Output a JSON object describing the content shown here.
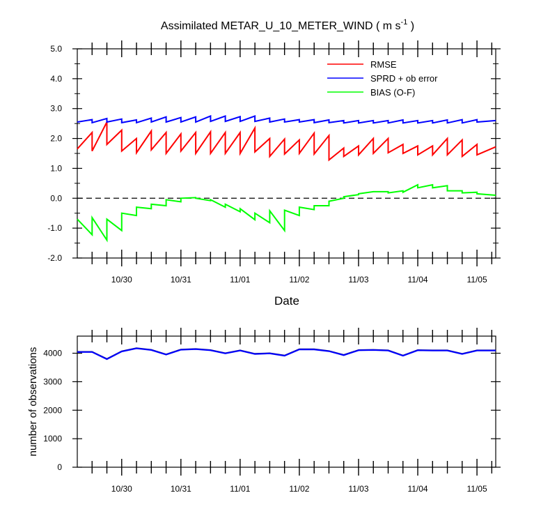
{
  "chart_data": [
    {
      "type": "line",
      "title": {
        "main": "Assimilated METAR_U_10_METER_WIND ( m s",
        "superscript": "-1",
        "end": " )"
      },
      "xlabel": "Date",
      "ylabel": "",
      "xlim": [
        0,
        42.4
      ],
      "ylim": [
        -2.0,
        5.0
      ],
      "yticks": [
        "5.0",
        "4.0",
        "3.0",
        "2.0",
        "1.0",
        "0.0",
        "-1.0",
        "-2.0"
      ],
      "ytick_values": [
        5,
        4,
        3,
        2,
        1,
        0,
        -1,
        -2
      ],
      "xticks": [
        {
          "label": "10/30",
          "value": 4.5
        },
        {
          "label": "10/31",
          "value": 10.5
        },
        {
          "label": "11/01",
          "value": 16.5
        },
        {
          "label": "11/02",
          "value": 22.5
        },
        {
          "label": "11/03",
          "value": 28.5
        },
        {
          "label": "11/04",
          "value": 34.5
        },
        {
          "label": "11/05",
          "value": 40.5
        }
      ],
      "reference_line": {
        "y": 0.0,
        "style": "dashed"
      },
      "legend": {
        "placement": "top-right"
      },
      "series": [
        {
          "name": "RMSE",
          "color": "#ff0000",
          "x": [
            0,
            1.5,
            1.5,
            3.0,
            3.0,
            4.5,
            4.5,
            6.0,
            6.0,
            7.5,
            7.5,
            9.0,
            9.0,
            10.5,
            10.5,
            12.0,
            12.0,
            13.5,
            13.5,
            15.0,
            15.0,
            16.5,
            16.5,
            18.0,
            18.0,
            19.5,
            19.5,
            21.0,
            21.0,
            22.5,
            22.5,
            24.0,
            24.0,
            25.5,
            25.5,
            27.0,
            27.0,
            28.5,
            28.5,
            30.0,
            30.0,
            31.5,
            31.5,
            33.0,
            33.0,
            34.5,
            34.5,
            36.0,
            36.0,
            37.5,
            37.5,
            39.0,
            39.0,
            40.5,
            40.5,
            42.4
          ],
          "values": [
            1.65,
            2.2,
            1.58,
            2.55,
            1.8,
            2.28,
            1.58,
            2.0,
            1.52,
            2.25,
            1.62,
            2.2,
            1.5,
            2.15,
            1.58,
            2.2,
            1.5,
            2.22,
            1.5,
            2.2,
            1.5,
            2.2,
            1.5,
            2.35,
            1.55,
            2.0,
            1.4,
            1.98,
            1.48,
            1.95,
            1.5,
            2.18,
            1.48,
            2.1,
            1.28,
            1.68,
            1.4,
            1.75,
            1.45,
            2.0,
            1.5,
            2.0,
            1.52,
            1.8,
            1.5,
            1.75,
            1.45,
            1.75,
            1.45,
            2.0,
            1.45,
            1.95,
            1.4,
            1.8,
            1.45,
            1.72
          ]
        },
        {
          "name": "SPRD + ob error",
          "color": "#0000ff",
          "x": [
            0,
            1.5,
            1.5,
            3.0,
            3.0,
            4.5,
            4.5,
            6.0,
            6.0,
            7.5,
            7.5,
            9.0,
            9.0,
            10.5,
            10.5,
            12.0,
            12.0,
            13.5,
            13.5,
            15.0,
            15.0,
            16.5,
            16.5,
            18.0,
            18.0,
            19.5,
            19.5,
            21.0,
            21.0,
            22.5,
            22.5,
            24.0,
            24.0,
            25.5,
            25.5,
            27.0,
            27.0,
            28.5,
            28.5,
            30.0,
            30.0,
            31.5,
            31.5,
            33.0,
            33.0,
            34.5,
            34.5,
            36.0,
            36.0,
            37.5,
            37.5,
            39.0,
            39.0,
            40.5,
            40.5,
            42.4
          ],
          "values": [
            2.55,
            2.63,
            2.53,
            2.67,
            2.55,
            2.65,
            2.53,
            2.62,
            2.53,
            2.68,
            2.55,
            2.72,
            2.55,
            2.7,
            2.55,
            2.72,
            2.55,
            2.75,
            2.57,
            2.75,
            2.57,
            2.73,
            2.57,
            2.75,
            2.57,
            2.68,
            2.55,
            2.65,
            2.55,
            2.63,
            2.55,
            2.63,
            2.53,
            2.62,
            2.53,
            2.6,
            2.52,
            2.6,
            2.52,
            2.6,
            2.52,
            2.6,
            2.52,
            2.62,
            2.52,
            2.6,
            2.52,
            2.6,
            2.52,
            2.62,
            2.52,
            2.63,
            2.52,
            2.63,
            2.55,
            2.6
          ]
        },
        {
          "name": "BIAS (O-F)",
          "color": "#00ff00",
          "x": [
            0,
            1.5,
            1.5,
            3.0,
            3.0,
            4.5,
            4.5,
            6.0,
            6.0,
            7.5,
            7.5,
            9.0,
            9.0,
            10.5,
            10.5,
            12.0,
            12.0,
            13.5,
            13.5,
            15.0,
            15.0,
            16.5,
            16.5,
            18.0,
            18.0,
            19.5,
            19.5,
            21.0,
            21.0,
            22.5,
            22.5,
            24.0,
            24.0,
            25.5,
            25.5,
            27.0,
            27.0,
            28.5,
            28.5,
            30.0,
            30.0,
            31.5,
            31.5,
            33.0,
            33.0,
            34.5,
            34.5,
            36.0,
            36.0,
            37.5,
            37.5,
            39.0,
            39.0,
            40.5,
            40.5,
            42.4
          ],
          "values": [
            -0.7,
            -1.22,
            -0.65,
            -1.4,
            -0.7,
            -1.08,
            -0.5,
            -0.58,
            -0.3,
            -0.35,
            -0.2,
            -0.25,
            -0.05,
            -0.12,
            0.0,
            0.02,
            0.0,
            -0.08,
            -0.05,
            -0.3,
            -0.2,
            -0.45,
            -0.35,
            -0.72,
            -0.5,
            -0.82,
            -0.42,
            -1.08,
            -0.4,
            -0.58,
            -0.3,
            -0.38,
            -0.25,
            -0.25,
            -0.1,
            0.0,
            0.05,
            0.12,
            0.15,
            0.22,
            0.22,
            0.22,
            0.18,
            0.25,
            0.2,
            0.45,
            0.35,
            0.45,
            0.35,
            0.42,
            0.25,
            0.25,
            0.18,
            0.2,
            0.15,
            0.1
          ]
        }
      ]
    },
    {
      "type": "line",
      "xlabel": "",
      "ylabel": "number of observations",
      "xlim": [
        0,
        42.4
      ],
      "ylim": [
        0,
        4600
      ],
      "yticks": [
        "4000",
        "3000",
        "2000",
        "1000",
        "0"
      ],
      "ytick_values": [
        4000,
        3000,
        2000,
        1000,
        0
      ],
      "xticks": [
        {
          "label": "10/30",
          "value": 4.5
        },
        {
          "label": "10/31",
          "value": 10.5
        },
        {
          "label": "11/01",
          "value": 16.5
        },
        {
          "label": "11/02",
          "value": 22.5
        },
        {
          "label": "11/03",
          "value": 28.5
        },
        {
          "label": "11/04",
          "value": 34.5
        },
        {
          "label": "11/05",
          "value": 40.5
        }
      ],
      "series": [
        {
          "color": "#000080",
          "x": [
            0,
            1.5,
            3.0,
            4.5,
            6.0,
            7.5,
            9.0,
            10.5,
            12.0,
            13.5,
            15.0,
            16.5,
            18.0,
            19.5,
            21.0,
            22.5,
            24.0,
            25.5,
            27.0,
            28.5,
            30.0,
            31.5,
            33.0,
            34.5,
            36.0,
            37.5,
            39.0,
            40.5,
            42.4
          ],
          "values": [
            4050,
            4050,
            3800,
            4070,
            4180,
            4120,
            3960,
            4130,
            4150,
            4110,
            4000,
            4100,
            3980,
            4000,
            3920,
            4140,
            4140,
            4080,
            3940,
            4110,
            4120,
            4100,
            3920,
            4110,
            4100,
            4100,
            3980,
            4100,
            4100
          ]
        },
        {
          "color": "#0000ff",
          "x": [
            0,
            1.5,
            3.0,
            4.5,
            6.0,
            7.5,
            9.0,
            10.5,
            12.0,
            13.5,
            15.0,
            16.5,
            18.0,
            19.5,
            21.0,
            22.5,
            24.0,
            25.5,
            27.0,
            28.5,
            30.0,
            31.5,
            33.0,
            34.5,
            36.0,
            37.5,
            39.0,
            40.5,
            42.4
          ],
          "values": [
            4040,
            4040,
            3790,
            4060,
            4170,
            4110,
            3950,
            4120,
            4140,
            4100,
            3990,
            4090,
            3970,
            3990,
            3910,
            4130,
            4130,
            4070,
            3930,
            4100,
            4110,
            4090,
            3910,
            4100,
            4090,
            4090,
            3970,
            4090,
            4090
          ]
        }
      ]
    }
  ]
}
